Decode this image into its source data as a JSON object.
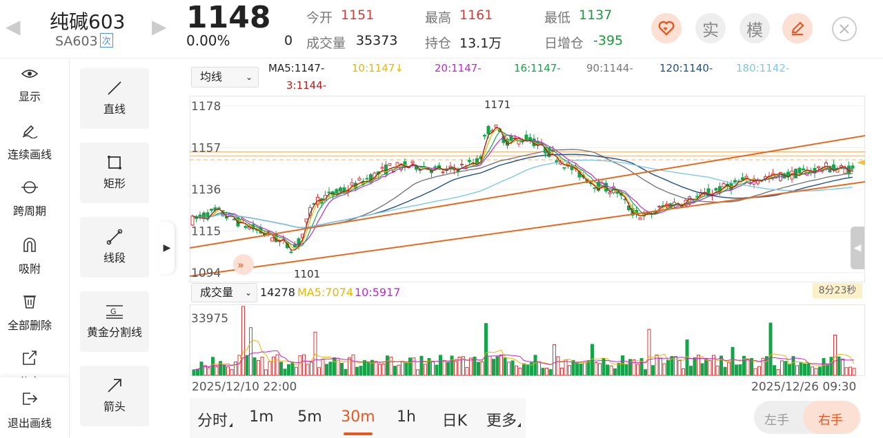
{
  "header": {
    "name": "纯碱603",
    "code": "SA603",
    "ci_badge": "次",
    "price": "1148",
    "change_pct": "0.00%",
    "zero": "0",
    "stats": {
      "open_label": "今开",
      "open_value": "1151",
      "high_label": "最高",
      "high_value": "1161",
      "low_label": "最低",
      "low_value": "1137",
      "volume_label": "成交量",
      "volume_value": "35373",
      "oi_label": "持仓",
      "oi_value": "13.1万",
      "oi_chg_label": "日增仓",
      "oi_chg_value": "-395"
    },
    "buttons": {
      "real": "实",
      "sim": "模"
    }
  },
  "left_toolbar": [
    {
      "label": "显示",
      "icon": "eye-icon"
    },
    {
      "label": "连续画线",
      "icon": "pencil-icon"
    },
    {
      "label": "跨周期",
      "icon": "cross-period-icon"
    },
    {
      "label": "吸附",
      "icon": "magnet-icon"
    },
    {
      "label": "全部删除",
      "icon": "trash-icon"
    },
    {
      "label": "分享",
      "icon": "share-icon"
    }
  ],
  "exit_draw": "退出画线",
  "draw_tools": [
    {
      "label": "直线",
      "icon": "line-icon"
    },
    {
      "label": "矩形",
      "icon": "rect-icon"
    },
    {
      "label": "线段",
      "icon": "segment-icon"
    },
    {
      "label": "黄金分割线",
      "icon": "golden-ratio-icon"
    },
    {
      "label": "箭头",
      "icon": "arrow-icon"
    }
  ],
  "ma_bar": {
    "selector": "均线",
    "items": [
      {
        "text": "MA5:1147-",
        "color": "#222222"
      },
      {
        "text": "10:1147↓",
        "color": "#e6b800"
      },
      {
        "text": "20:1147-",
        "color": "#c026d3"
      },
      {
        "text": "16:1147-",
        "color": "#16a34a"
      },
      {
        "text": "90:1144-",
        "color": "#777777"
      },
      {
        "text": "120:1140-",
        "color": "#1e4f8a"
      },
      {
        "text": "180:1142-",
        "color": "#7ec8e3"
      },
      {
        "text": "3:1144-",
        "color": "#b91c1c"
      }
    ]
  },
  "vol_bar": {
    "selector": "成交量",
    "value": "14278",
    "ma5": "MA5:7074",
    "ma10": "10:5917",
    "countdown": "8分23秒"
  },
  "chart_data": {
    "type": "candlestick",
    "y_ticks": [
      "1178",
      "1157",
      "1136",
      "1115",
      "1094"
    ],
    "ylim": [
      1094,
      1178
    ],
    "high_marker": "1171",
    "low_marker": "1101",
    "vol_max": "33975",
    "x_start": "2025/12/10 22:00",
    "x_end": "2025/12/26 09:30"
  },
  "timeframes": [
    "分时",
    "1m",
    "5m",
    "30m",
    "1h",
    "日K",
    "更多"
  ],
  "active_timeframe": "30m",
  "hand_toggle": {
    "left": "左手",
    "right": "右手"
  }
}
